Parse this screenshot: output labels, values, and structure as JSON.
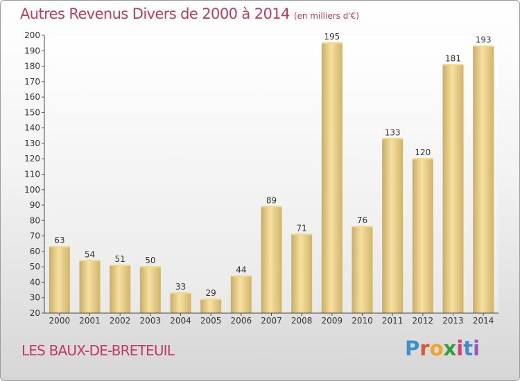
{
  "header": {
    "title": "Autres Revenus Divers de 2000 à 2014",
    "unit": "(en milliers d'€)"
  },
  "footer": {
    "commune": "LES BAUX-DE-BRETEUIL",
    "logo": "Proxiti"
  },
  "colors": {
    "title": "#c0395f",
    "bar_light": "#f7e0a0",
    "bar_dark": "#c9ad63",
    "grid": "#dddddd"
  },
  "chart_data": {
    "type": "bar",
    "title": "Autres Revenus Divers de 2000 à 2014",
    "subtitle": "(en milliers d'€)",
    "xlabel": "",
    "ylabel": "",
    "categories": [
      "2000",
      "2001",
      "2002",
      "2003",
      "2004",
      "2005",
      "2006",
      "2007",
      "2008",
      "2009",
      "2010",
      "2011",
      "2012",
      "2013",
      "2014"
    ],
    "values": [
      63,
      54,
      51,
      50,
      33,
      29,
      44,
      89,
      71,
      195,
      76,
      133,
      120,
      181,
      193
    ],
    "ylim": [
      20,
      200
    ],
    "yticks": [
      20,
      30,
      40,
      50,
      60,
      70,
      80,
      90,
      100,
      110,
      120,
      130,
      140,
      150,
      160,
      170,
      180,
      190,
      200
    ],
    "grid": false,
    "data_labels": true
  }
}
